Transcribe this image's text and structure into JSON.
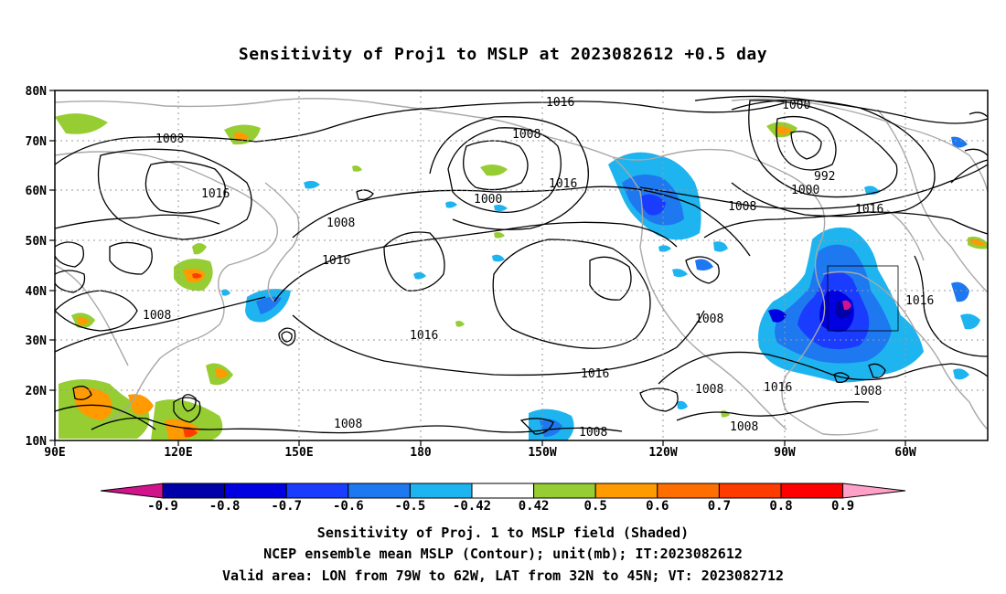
{
  "title": "Sensitivity of Proj1 to MSLP at 2023082612 +0.5 day",
  "map": {
    "lon_ticks": [
      "90E",
      "120E",
      "150E",
      "180",
      "150W",
      "120W",
      "90W",
      "60W"
    ],
    "lat_ticks": [
      "80N",
      "70N",
      "60N",
      "50N",
      "40N",
      "30N",
      "20N",
      "10N"
    ],
    "contour_labels": [
      "1016",
      "1008",
      "1016",
      "1008",
      "1016",
      "1008",
      "1000",
      "1016",
      "1008",
      "1000",
      "992",
      "1000",
      "1008",
      "1016",
      "1016",
      "1008",
      "1016",
      "1016",
      "1008",
      "1016",
      "1008",
      "1008",
      "1008",
      "1008",
      "1008"
    ],
    "valid_box": {
      "lon_min": -79,
      "lon_max": -62,
      "lat_min": 32,
      "lat_max": 45
    }
  },
  "colorbar": {
    "labels": [
      "-0.9",
      "-0.8",
      "-0.7",
      "-0.6",
      "-0.5",
      "-0.42",
      "0.42",
      "0.5",
      "0.6",
      "0.7",
      "0.8",
      "0.9"
    ],
    "colors": [
      "#0000a8",
      "#0000e0",
      "#1a3cff",
      "#1e78f0",
      "#1eb4f0",
      "#ffffff",
      "#96cd32",
      "#ff9b00",
      "#ff6e00",
      "#ff3c00",
      "#ff0000"
    ],
    "low_end_color": "#d2148c",
    "high_end_color": "#ffa0c8"
  },
  "footer": {
    "line1": "Sensitivity of Proj. 1 to MSLP field (Shaded)",
    "line2": "NCEP ensemble mean MSLP (Contour); unit(mb); IT:2023082612",
    "line3": "Valid area: LON from 79W to 62W, LAT from 32N to 45N; VT: 2023082712"
  }
}
